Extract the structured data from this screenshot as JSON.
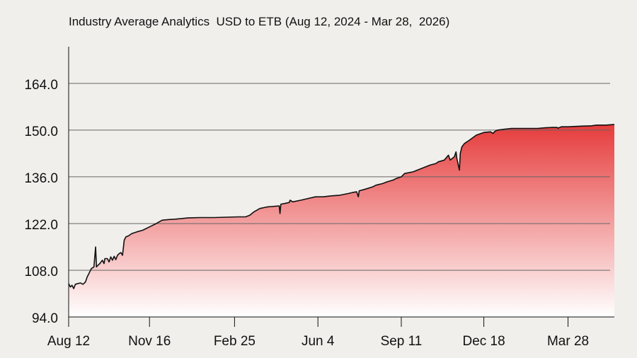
{
  "chart_data": {
    "type": "area",
    "title": "Industry Average Analytics  USD to ETB (Aug 12, 2024 - Mar 28,  2026)",
    "xlabel": "",
    "ylabel": "",
    "x_range": [
      "2024-08-12",
      "2026-05-22"
    ],
    "ylim": [
      94,
      175
    ],
    "yticks": [
      94.0,
      108.0,
      122.0,
      136.0,
      150.0,
      164.0
    ],
    "ytick_labels": [
      "94.0",
      "108.0",
      "122.0",
      "136.0",
      "150.0",
      "164.0"
    ],
    "xticks": [
      {
        "date": "2024-08-12",
        "label": "Aug 12"
      },
      {
        "date": "2024-11-16",
        "label": "Nov 16"
      },
      {
        "date": "2025-02-25",
        "label": "Feb 25"
      },
      {
        "date": "2025-06-04",
        "label": "Jun 4"
      },
      {
        "date": "2025-09-11",
        "label": "Sep 11"
      },
      {
        "date": "2025-12-18",
        "label": "Dec 18"
      },
      {
        "date": "2026-03-28",
        "label": "Mar 28"
      }
    ],
    "grid": true,
    "legend": "none",
    "colors": {
      "fill_top": "#e63c3c",
      "fill_bottom": "#ffffff",
      "line": "#111111",
      "grid": "#666666"
    },
    "series": [
      {
        "x": [
          "2024-08-12",
          "2024-08-14",
          "2024-08-16",
          "2024-08-18",
          "2024-08-20",
          "2024-08-23",
          "2024-08-26",
          "2024-08-29",
          "2024-09-01",
          "2024-09-03",
          "2024-09-05",
          "2024-09-08",
          "2024-09-11",
          "2024-09-13",
          "2024-09-14",
          "2024-09-15",
          "2024-09-18",
          "2024-09-21",
          "2024-09-23",
          "2024-09-24",
          "2024-09-27",
          "2024-09-29",
          "2024-10-01",
          "2024-10-03",
          "2024-10-05",
          "2024-10-07",
          "2024-10-09",
          "2024-10-11",
          "2024-10-13",
          "2024-10-15",
          "2024-10-17",
          "2024-10-19",
          "2024-10-22",
          "2024-10-26",
          "2024-11-01",
          "2024-11-08",
          "2024-11-16",
          "2024-11-24",
          "2024-12-01",
          "2024-12-09",
          "2024-12-16",
          "2024-12-24",
          "2025-01-01",
          "2025-01-15",
          "2025-02-01",
          "2025-02-15",
          "2025-03-01",
          "2025-03-10",
          "2025-03-15",
          "2025-03-20",
          "2025-03-27",
          "2025-04-05",
          "2025-04-15",
          "2025-04-19",
          "2025-04-20",
          "2025-04-21",
          "2025-04-25",
          "2025-05-01",
          "2025-05-02",
          "2025-05-05",
          "2025-05-15",
          "2025-05-23",
          "2025-06-01",
          "2025-06-10",
          "2025-06-20",
          "2025-06-30",
          "2025-07-10",
          "2025-07-15",
          "2025-07-20",
          "2025-07-22",
          "2025-07-23",
          "2025-07-29",
          "2025-08-08",
          "2025-08-12",
          "2025-08-20",
          "2025-08-25",
          "2025-09-01",
          "2025-09-05",
          "2025-09-11",
          "2025-09-15",
          "2025-09-25",
          "2025-10-05",
          "2025-10-15",
          "2025-10-22",
          "2025-10-25",
          "2025-11-01",
          "2025-11-06",
          "2025-11-08",
          "2025-11-13",
          "2025-11-15",
          "2025-11-16",
          "2025-11-19",
          "2025-11-20",
          "2025-11-22",
          "2025-11-25",
          "2025-12-01",
          "2025-12-09",
          "2025-12-18",
          "2025-12-26",
          "2025-12-29",
          "2025-12-31",
          "2026-01-03",
          "2026-01-12",
          "2026-01-20",
          "2026-02-01",
          "2026-02-20",
          "2026-03-01",
          "2026-03-10",
          "2026-03-15",
          "2026-03-16",
          "2026-03-20",
          "2026-03-28",
          "2026-04-05",
          "2026-04-15",
          "2026-04-25",
          "2026-05-01",
          "2026-05-12",
          "2026-05-22"
        ],
        "values": [
          104.0,
          103.0,
          103.5,
          102.5,
          103.8,
          104.0,
          104.2,
          103.8,
          104.5,
          106.0,
          107.0,
          108.5,
          109.0,
          115.0,
          109.0,
          109.3,
          110.0,
          111.0,
          110.0,
          111.5,
          111.5,
          110.5,
          112.0,
          111.0,
          112.2,
          111.2,
          112.5,
          113.0,
          113.3,
          112.5,
          117.0,
          118.0,
          118.3,
          119.0,
          119.5,
          120.0,
          121.0,
          122.0,
          123.0,
          123.2,
          123.3,
          123.5,
          123.7,
          123.8,
          123.8,
          123.9,
          124.0,
          124.0,
          124.5,
          125.5,
          126.5,
          127.0,
          127.2,
          127.3,
          125.0,
          127.8,
          128.0,
          128.3,
          129.0,
          128.5,
          129.0,
          129.5,
          130.0,
          130.0,
          130.3,
          130.5,
          131.0,
          131.3,
          131.5,
          130.0,
          131.8,
          132.2,
          133.0,
          133.5,
          134.0,
          134.5,
          135.0,
          135.5,
          136.0,
          137.0,
          137.5,
          138.5,
          139.5,
          140.0,
          140.5,
          141.0,
          142.5,
          141.0,
          142.0,
          143.5,
          141.5,
          138.0,
          143.0,
          145.0,
          146.0,
          147.0,
          148.5,
          149.3,
          149.5,
          149.0,
          149.6,
          150.0,
          150.3,
          150.5,
          150.5,
          150.5,
          150.7,
          150.8,
          150.8,
          150.6,
          151.0,
          151.0,
          151.1,
          151.2,
          151.3,
          151.5,
          151.5,
          151.7
        ],
        "labels": []
      }
    ]
  }
}
